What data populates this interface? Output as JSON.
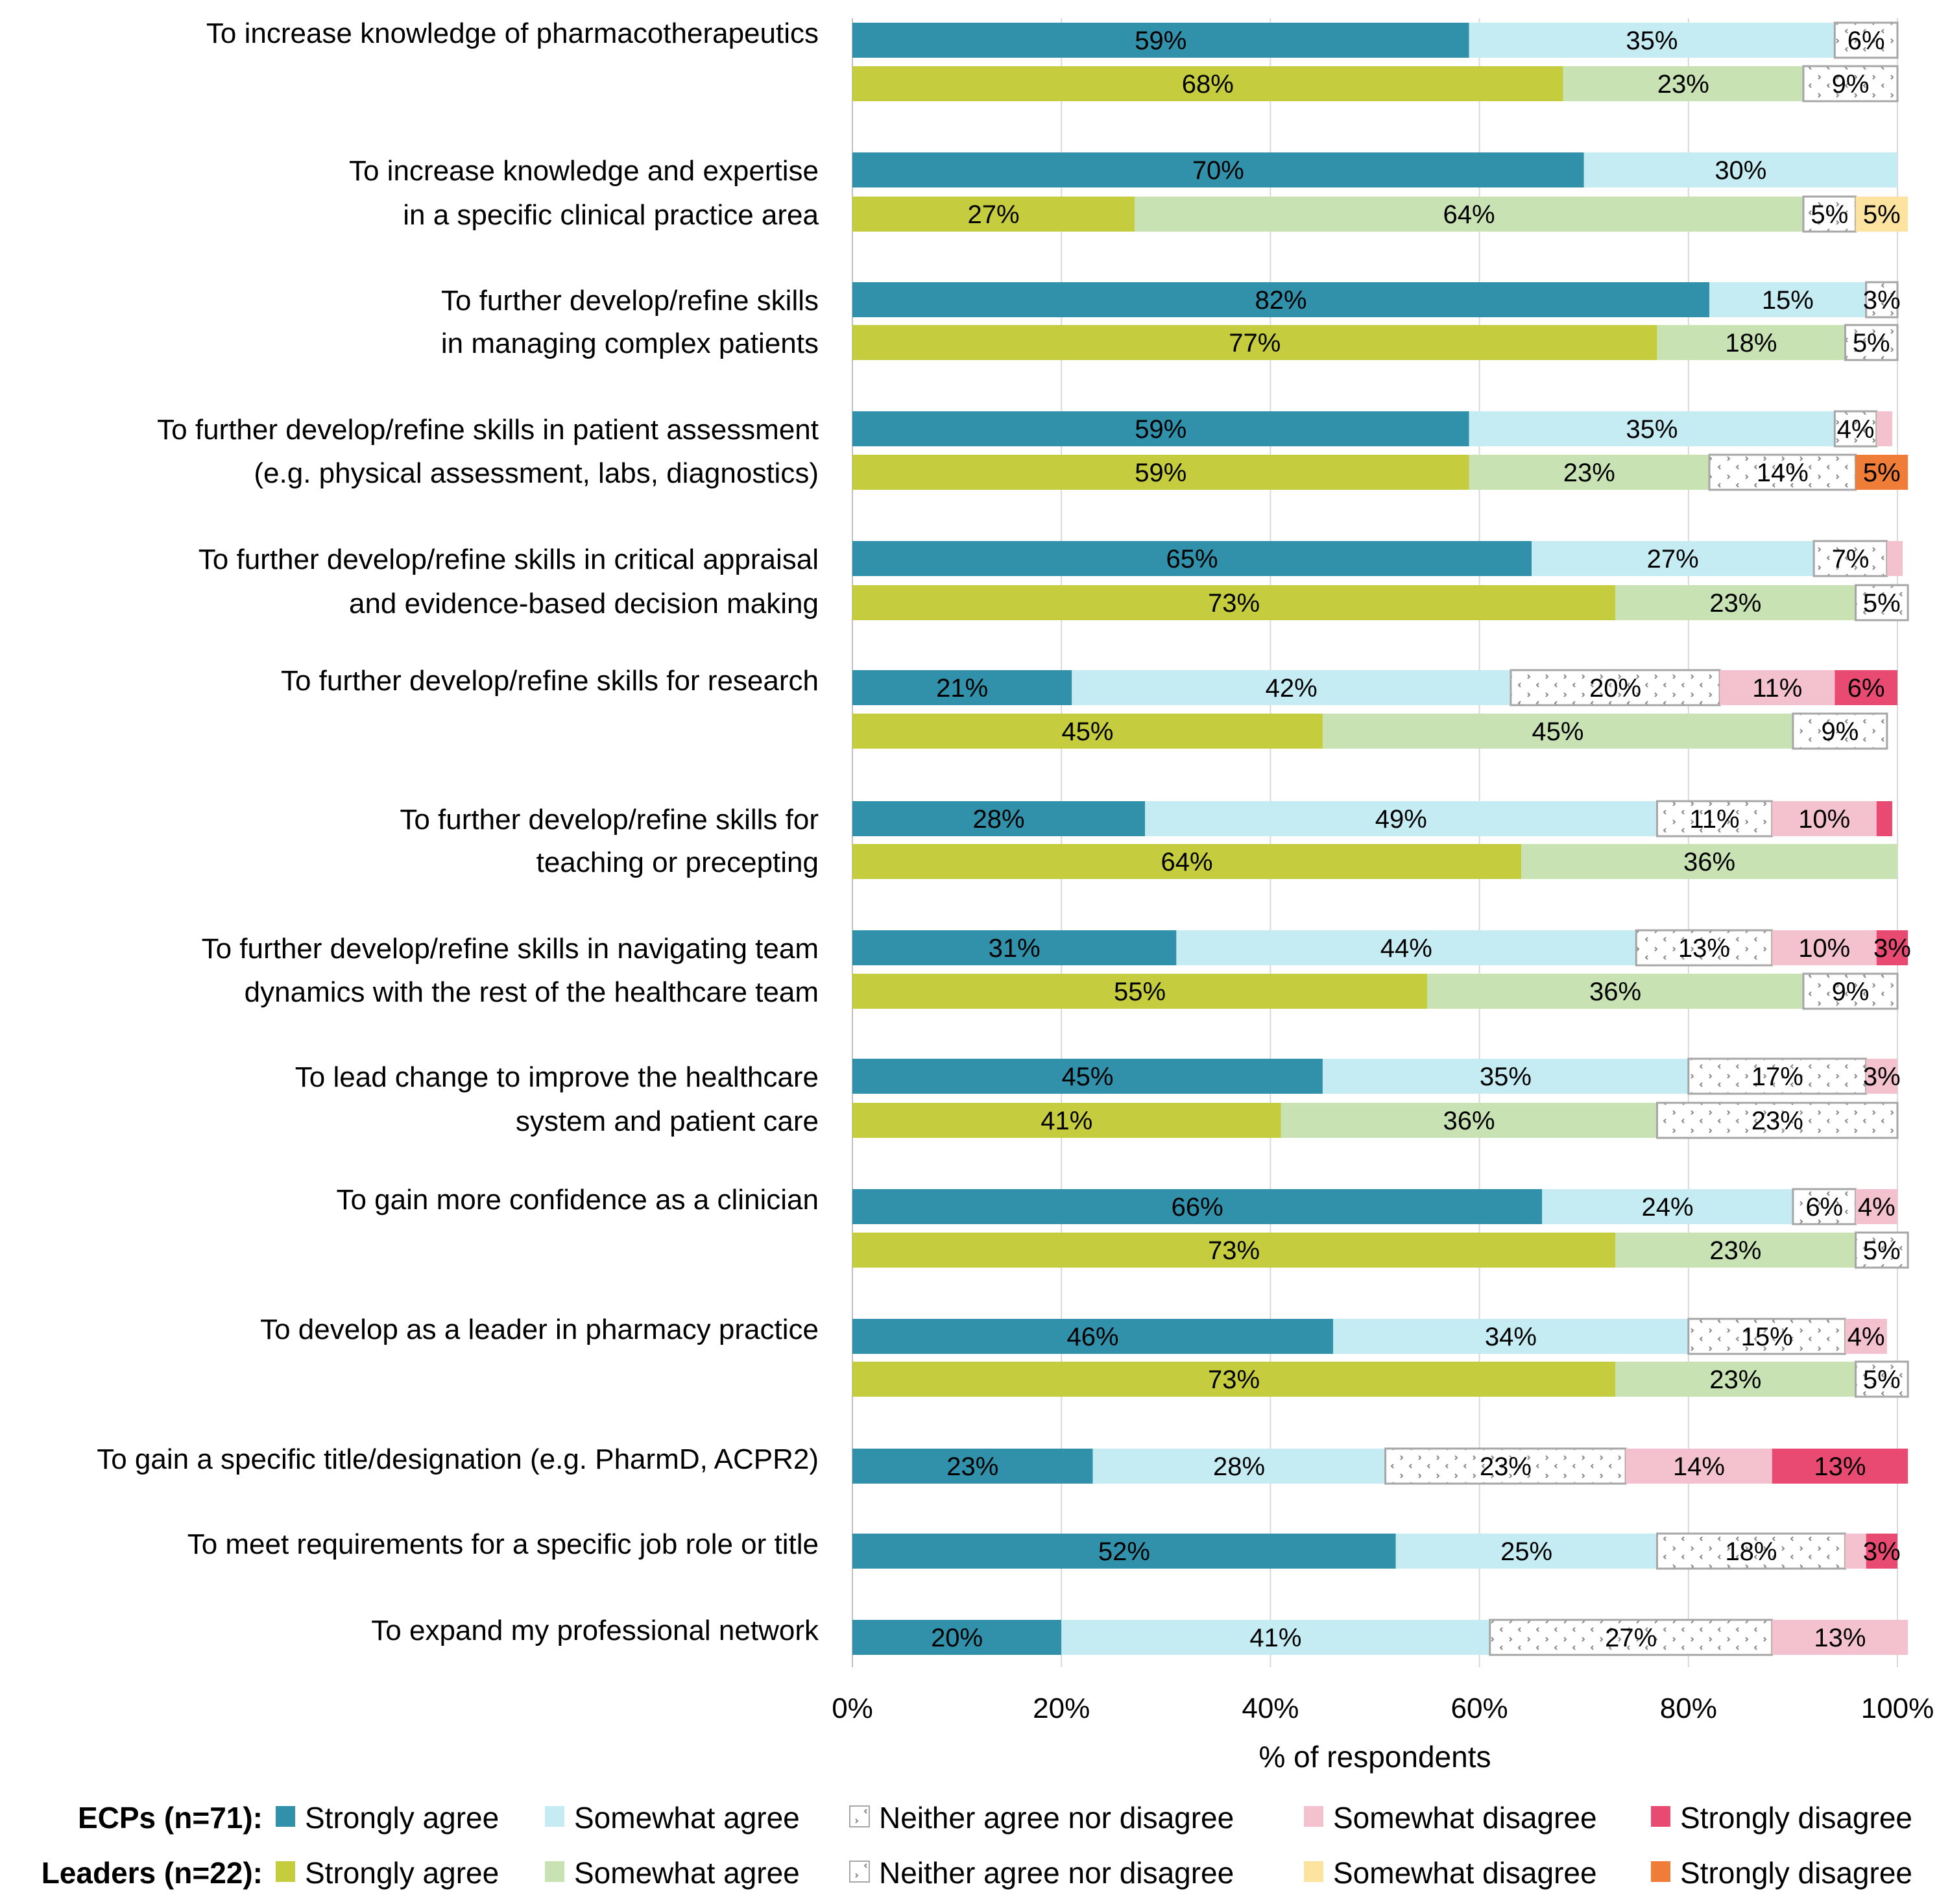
{
  "chart_data": {
    "type": "bar",
    "orientation": "horizontal",
    "stacked": true,
    "percent_stacked": true,
    "title": "",
    "xlabel": "% of respondents",
    "ylabel": "",
    "xlim": [
      0,
      100
    ],
    "x_ticks": [
      "0%",
      "20%",
      "40%",
      "60%",
      "80%",
      "100%"
    ],
    "grid": "vertical",
    "legend_placement": "bottom",
    "groups": [
      {
        "key": "ecp",
        "name": "ECPs (n=71):",
        "colors": [
          "#3190aa",
          "#c5ebf3",
          "pattern",
          "#f4c2cf",
          "#e94a72"
        ]
      },
      {
        "key": "leader",
        "name": "Leaders (n=22):",
        "colors": [
          "#c5cd3e",
          "#c8e2b4",
          "pattern",
          "#fde3a0",
          "#ef7d37"
        ]
      }
    ],
    "response_levels": [
      "Strongly agree",
      "Somewhat agree",
      "Neither agree nor disagree",
      "Somewhat disagree",
      "Strongly disagree"
    ],
    "categories": [
      {
        "label": [
          "To increase knowledge of pharmacotherapeutics"
        ],
        "ecp": [
          59,
          35,
          6,
          0,
          0
        ],
        "leader": [
          68,
          23,
          9,
          0,
          0
        ]
      },
      {
        "label": [
          "To increase knowledge and expertise",
          "in a specific clinical practice area"
        ],
        "ecp": [
          70,
          30,
          0,
          0,
          0
        ],
        "leader": [
          27,
          64,
          5,
          5,
          0
        ]
      },
      {
        "label": [
          "To further develop/refine skills",
          "in managing complex patients"
        ],
        "ecp": [
          82,
          15,
          3,
          0,
          0
        ],
        "leader": [
          77,
          18,
          5,
          0,
          0
        ]
      },
      {
        "label": [
          "To further develop/refine skills in patient assessment",
          "(e.g. physical assessment, labs, diagnostics)"
        ],
        "ecp": [
          59,
          35,
          4,
          1.5,
          0
        ],
        "leader": [
          59,
          23,
          14,
          0,
          5
        ]
      },
      {
        "label": [
          "To further develop/refine skills in critical appraisal",
          "and evidence-based decision making"
        ],
        "ecp": [
          65,
          27,
          7,
          1.5,
          0
        ],
        "leader": [
          73,
          23,
          5,
          0,
          0
        ]
      },
      {
        "label": [
          "To further develop/refine skills for research"
        ],
        "ecp": [
          21,
          42,
          20,
          11,
          6
        ],
        "leader": [
          45,
          45,
          9,
          0,
          0
        ]
      },
      {
        "label": [
          "To further develop/refine skills for",
          "teaching or precepting"
        ],
        "ecp": [
          28,
          49,
          11,
          10,
          1.5
        ],
        "leader": [
          64,
          36,
          0,
          0,
          0
        ]
      },
      {
        "label": [
          "To further develop/refine skills in navigating team",
          "dynamics with the rest of the healthcare team"
        ],
        "ecp": [
          31,
          44,
          13,
          10,
          3
        ],
        "leader": [
          55,
          36,
          9,
          0,
          0
        ]
      },
      {
        "label": [
          "To lead change to improve the healthcare",
          "system and patient care"
        ],
        "ecp": [
          45,
          35,
          17,
          3,
          0
        ],
        "leader": [
          41,
          36,
          23,
          0,
          0
        ]
      },
      {
        "label": [
          "To gain more confidence as a clinician"
        ],
        "ecp": [
          66,
          24,
          6,
          4,
          0
        ],
        "leader": [
          73,
          23,
          5,
          0,
          0
        ]
      },
      {
        "label": [
          "To develop as a leader in pharmacy practice"
        ],
        "ecp": [
          46,
          34,
          15,
          4,
          0
        ],
        "leader": [
          73,
          23,
          5,
          0,
          0
        ]
      },
      {
        "label": [
          "To gain a specific title/designation (e.g. PharmD, ACPR2)"
        ],
        "ecp": [
          23,
          28,
          23,
          14,
          13
        ],
        "leader": null
      },
      {
        "label": [
          "To meet requirements for a specific job role or title"
        ],
        "ecp": [
          52,
          25,
          18,
          2,
          3
        ],
        "leader": null
      },
      {
        "label": [
          "To expand my professional network"
        ],
        "ecp": [
          20,
          41,
          27,
          13,
          0
        ],
        "leader": null
      }
    ],
    "unlabeled_threshold_note": "Segments below 3% are drawn without a data label"
  }
}
